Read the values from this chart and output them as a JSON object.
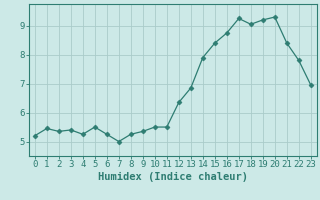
{
  "x": [
    0,
    1,
    2,
    3,
    4,
    5,
    6,
    7,
    8,
    9,
    10,
    11,
    12,
    13,
    14,
    15,
    16,
    17,
    18,
    19,
    20,
    21,
    22,
    23
  ],
  "y": [
    5.2,
    5.45,
    5.35,
    5.4,
    5.25,
    5.5,
    5.25,
    5.0,
    5.25,
    5.35,
    5.5,
    5.5,
    6.35,
    6.85,
    7.9,
    8.4,
    8.75,
    9.25,
    9.05,
    9.2,
    9.3,
    8.4,
    7.8,
    6.95
  ],
  "line_color": "#2e7d72",
  "marker": "D",
  "marker_size": 2.5,
  "bg_color": "#cce9e7",
  "grid_color": "#aaccca",
  "axis_color": "#2e7d72",
  "tick_color": "#2e7d72",
  "xlabel": "Humidex (Indice chaleur)",
  "xlim": [
    -0.5,
    23.5
  ],
  "ylim": [
    4.5,
    9.75
  ],
  "yticks": [
    5,
    6,
    7,
    8,
    9
  ],
  "xticks": [
    0,
    1,
    2,
    3,
    4,
    5,
    6,
    7,
    8,
    9,
    10,
    11,
    12,
    13,
    14,
    15,
    16,
    17,
    18,
    19,
    20,
    21,
    22,
    23
  ],
  "tick_fontsize": 6.5,
  "label_fontsize": 7.5
}
